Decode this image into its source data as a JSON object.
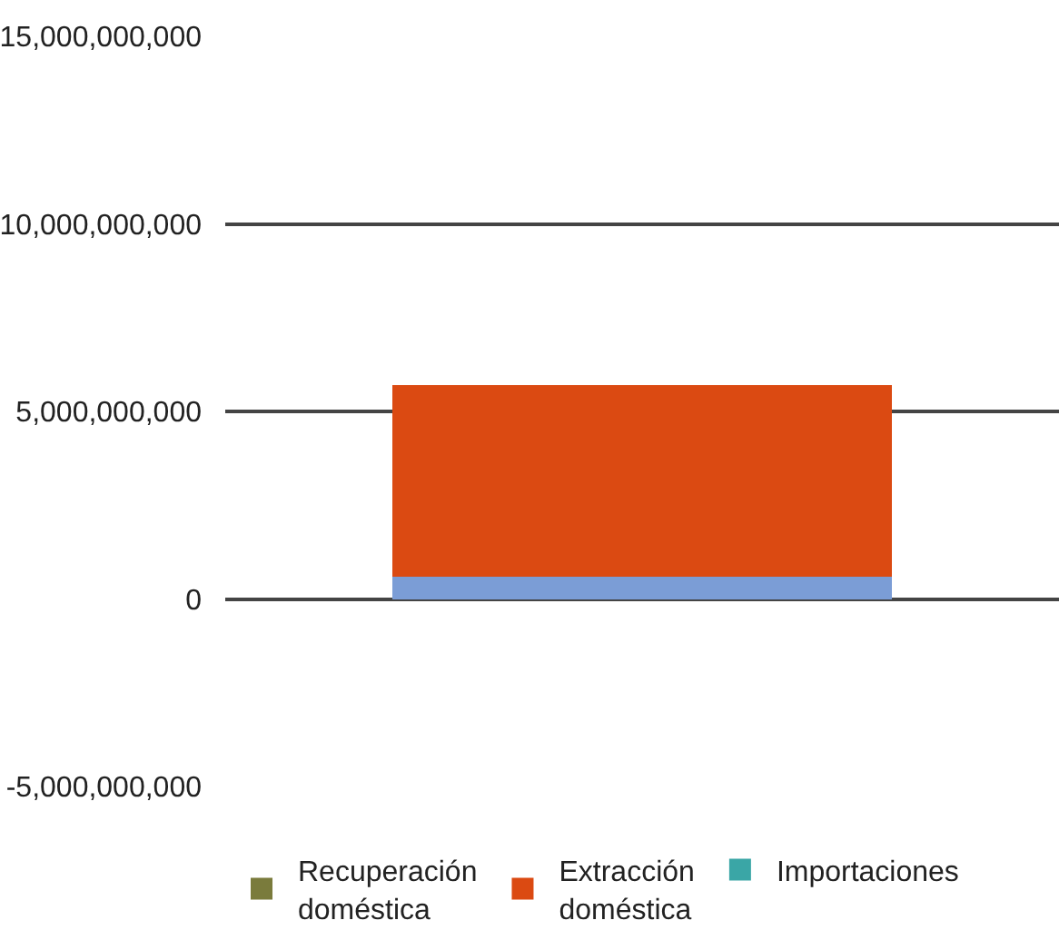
{
  "chart_data": {
    "type": "bar",
    "stacked": true,
    "categories": [
      null
    ],
    "series": [
      {
        "color": "#7b9dd6",
        "values": [
          600000000
        ]
      },
      {
        "name": "Recuperación doméstica",
        "color": "#7a7b3c",
        "values": [
          0
        ]
      },
      {
        "name": "Extracción doméstica",
        "color": "#db4a12",
        "values": [
          5100000000
        ]
      },
      {
        "name": "Importaciones",
        "color": "#3aa6a6",
        "values": [
          0
        ]
      }
    ],
    "ylim": [
      -5000000000,
      15000000000
    ],
    "yticks": [
      {
        "value": -5000000000,
        "label": "-5,000,000,000"
      },
      {
        "value": 0,
        "label": "0"
      },
      {
        "value": 5000000000,
        "label": "5,000,000,000"
      },
      {
        "value": 10000000000,
        "label": "10,000,000,000"
      },
      {
        "value": 15000000000,
        "label": "15,000,000,000"
      }
    ],
    "grid": "y",
    "legend": "bottom",
    "tick_labels": "y"
  }
}
